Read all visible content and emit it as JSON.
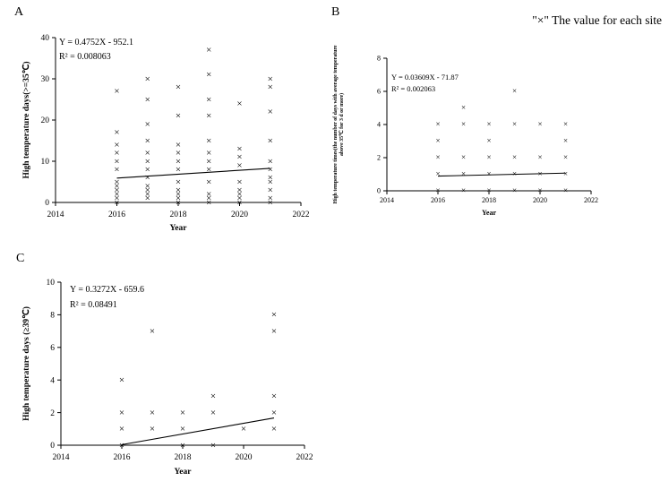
{
  "page": {
    "legend_note": "\"×\" The value for each site"
  },
  "panels": [
    {
      "label": "A"
    },
    {
      "label": "B"
    },
    {
      "label": "C"
    }
  ],
  "chart_data": [
    {
      "id": "A",
      "type": "scatter",
      "marker": "×",
      "xlabel": "Year",
      "ylabel_lines": [
        "High temperature days(>=35℃)"
      ],
      "xlim": [
        2014,
        2022
      ],
      "ylim": [
        0,
        40
      ],
      "xticks": [
        2014,
        2016,
        2018,
        2020,
        2022
      ],
      "yticks": [
        0,
        10,
        20,
        30,
        40
      ],
      "equation": "Y = 0.4752X - 952.1",
      "r_squared": "R² = 0.008063",
      "fit_line": {
        "slope": 0.4752,
        "intercept": -952.1,
        "x_start": 2016,
        "x_end": 2021
      },
      "series": [
        {
          "year": 2016,
          "values": [
            0,
            1,
            2,
            3,
            4,
            5,
            8,
            10,
            12,
            14,
            17,
            27
          ]
        },
        {
          "year": 2017,
          "values": [
            1,
            2,
            3,
            4,
            6,
            8,
            10,
            12,
            15,
            19,
            25,
            30
          ]
        },
        {
          "year": 2018,
          "values": [
            0,
            1,
            2,
            3,
            5,
            8,
            10,
            12,
            14,
            21,
            28
          ]
        },
        {
          "year": 2019,
          "values": [
            0,
            1,
            2,
            5,
            8,
            10,
            12,
            15,
            21,
            25,
            31,
            37
          ]
        },
        {
          "year": 2020,
          "values": [
            0,
            1,
            2,
            3,
            5,
            9,
            11,
            13,
            24
          ]
        },
        {
          "year": 2021,
          "values": [
            0,
            1,
            3,
            5,
            6,
            8,
            10,
            15,
            22,
            28,
            30
          ]
        }
      ]
    },
    {
      "id": "B",
      "type": "scatter",
      "marker": "×",
      "xlabel": "Year",
      "ylabel_lines": [
        "High temperature times(the number of days with average temperature",
        "above 35℃ for 3 d or more)"
      ],
      "xlim": [
        2014,
        2022
      ],
      "ylim": [
        0,
        8
      ],
      "xticks": [
        2014,
        2016,
        2018,
        2020,
        2022
      ],
      "yticks": [
        0,
        2,
        4,
        6,
        8
      ],
      "equation": "Y = 0.03609X - 71.87",
      "r_squared": "R² = 0.002063",
      "fit_line": {
        "slope": 0.03609,
        "intercept": -71.87,
        "x_start": 2016,
        "x_end": 2021
      },
      "series": [
        {
          "year": 2016,
          "values": [
            0,
            1,
            2,
            3,
            4
          ]
        },
        {
          "year": 2017,
          "values": [
            0,
            1,
            2,
            4,
            5
          ]
        },
        {
          "year": 2018,
          "values": [
            0,
            1,
            2,
            3,
            4
          ]
        },
        {
          "year": 2019,
          "values": [
            0,
            1,
            2,
            4,
            6
          ]
        },
        {
          "year": 2020,
          "values": [
            0,
            1,
            2,
            4
          ]
        },
        {
          "year": 2021,
          "values": [
            0,
            1,
            2,
            3,
            4
          ]
        }
      ]
    },
    {
      "id": "C",
      "type": "scatter",
      "marker": "×",
      "xlabel": "Year",
      "ylabel_lines": [
        "High temperature days (≥39℃)"
      ],
      "xlim": [
        2014,
        2022
      ],
      "ylim": [
        0,
        10
      ],
      "xticks": [
        2014,
        2016,
        2018,
        2020,
        2022
      ],
      "yticks": [
        0,
        2,
        4,
        6,
        8,
        10
      ],
      "equation": "Y = 0.3272X - 659.6",
      "r_squared": "R² = 0.08491",
      "fit_line": {
        "slope": 0.3272,
        "intercept": -659.6,
        "x_start": 2016,
        "x_end": 2021
      },
      "series": [
        {
          "year": 2016,
          "values": [
            0,
            1,
            2,
            4
          ]
        },
        {
          "year": 2017,
          "values": [
            1,
            2,
            7
          ]
        },
        {
          "year": 2018,
          "values": [
            0,
            1,
            2
          ]
        },
        {
          "year": 2019,
          "values": [
            0,
            2,
            3
          ]
        },
        {
          "year": 2020,
          "values": [
            1
          ]
        },
        {
          "year": 2021,
          "values": [
            1,
            2,
            3,
            7,
            8
          ]
        }
      ]
    }
  ]
}
